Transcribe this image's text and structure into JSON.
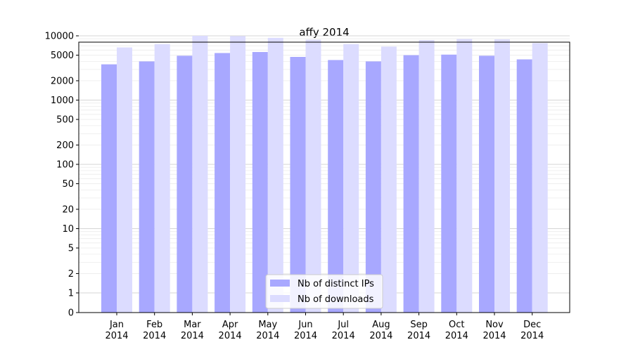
{
  "chart_data": {
    "type": "bar",
    "title": "affy 2014",
    "xlabel": "",
    "ylabel": "",
    "yscale": "symlog",
    "categories": [
      "Jan\n2014",
      "Feb\n2014",
      "Mar\n2014",
      "Apr\n2014",
      "May\n2014",
      "Jun\n2014",
      "Jul\n2014",
      "Aug\n2014",
      "Sep\n2014",
      "Oct\n2014",
      "Nov\n2014",
      "Dec\n2014"
    ],
    "series": [
      {
        "name": "Nb of distinct IPs",
        "color": "#a8a8ff",
        "values": [
          3600,
          4000,
          4900,
          5400,
          5600,
          4700,
          4200,
          4000,
          5000,
          5100,
          4900,
          4300
        ]
      },
      {
        "name": "Nb of downloads",
        "color": "#dcdcff",
        "values": [
          6600,
          7400,
          10000,
          9900,
          9300,
          8700,
          7400,
          6800,
          8600,
          8900,
          8800,
          7700
        ]
      }
    ],
    "y_ticks": [
      {
        "value": 0,
        "label": "0"
      },
      {
        "value": 1,
        "label": "1"
      },
      {
        "value": 2,
        "label": "2"
      },
      {
        "value": 5,
        "label": "5"
      },
      {
        "value": 10,
        "label": "10"
      },
      {
        "value": 20,
        "label": "20"
      },
      {
        "value": 50,
        "label": "50"
      },
      {
        "value": 100,
        "label": "100"
      },
      {
        "value": 200,
        "label": "200"
      },
      {
        "value": 500,
        "label": "500"
      },
      {
        "value": 1000,
        "label": "1000"
      },
      {
        "value": 2000,
        "label": "2000"
      },
      {
        "value": 5000,
        "label": "5000"
      },
      {
        "value": 10000,
        "label": "10000"
      }
    ],
    "ylim": [
      0,
      13000
    ],
    "grid": true,
    "legend_position": "bottom-center"
  }
}
